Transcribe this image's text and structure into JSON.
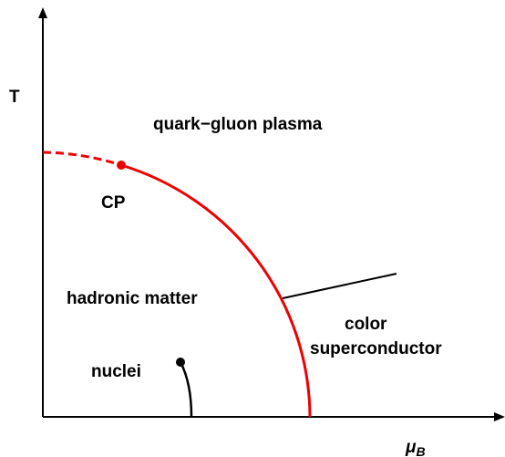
{
  "axes": {
    "y_label": "T",
    "x_label": "μ",
    "x_label_sub": "B"
  },
  "regions": [
    {
      "label": "quark−gluon plasma"
    },
    {
      "label": "hadronic matter"
    },
    {
      "label": "color"
    },
    {
      "label": "superconductor"
    }
  ],
  "points": [
    {
      "label": "CP"
    },
    {
      "label": "nuclei"
    }
  ]
}
